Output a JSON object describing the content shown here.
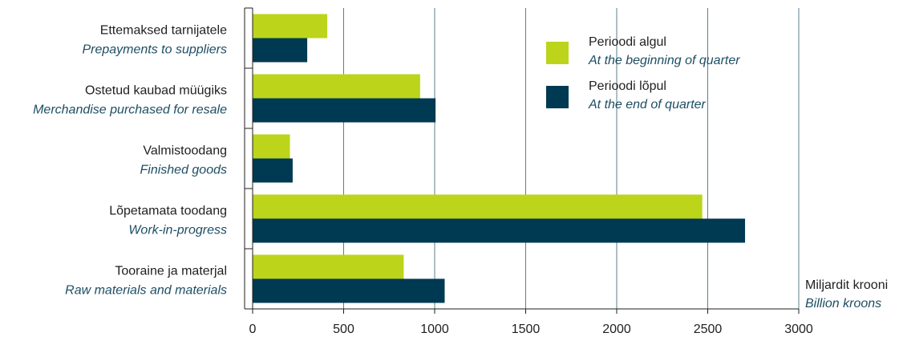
{
  "chart_data": {
    "type": "bar",
    "orientation": "horizontal",
    "categories": [
      {
        "label": "Ettemaksed tarnijatele",
        "sublabel": "Prepayments to suppliers"
      },
      {
        "label": "Ostetud kaubad müügiks",
        "sublabel": "Merchandise purchased for resale"
      },
      {
        "label": "Valmistoodang",
        "sublabel": "Finished goods"
      },
      {
        "label": "Lõpetamata toodang",
        "sublabel": "Work-in-progress"
      },
      {
        "label": "Tooraine ja materjal",
        "sublabel": "Raw materials and materials"
      }
    ],
    "series": [
      {
        "name": "Perioodi algul",
        "subname": "At the beginning of quarter",
        "color": "#bcd41a",
        "values": [
          410,
          920,
          205,
          2470,
          830
        ]
      },
      {
        "name": "Perioodi lõpul",
        "subname": "At the end of quarter",
        "color": "#003a52",
        "values": [
          300,
          1005,
          220,
          2705,
          1055
        ]
      }
    ],
    "xlim": [
      0,
      3000
    ],
    "xticks": [
      0,
      500,
      1000,
      1500,
      2000,
      2500,
      3000
    ],
    "grid": true,
    "legend_position": "top-right",
    "unit": {
      "label": "Miljardit krooni",
      "sublabel": "Billion kroons"
    }
  }
}
